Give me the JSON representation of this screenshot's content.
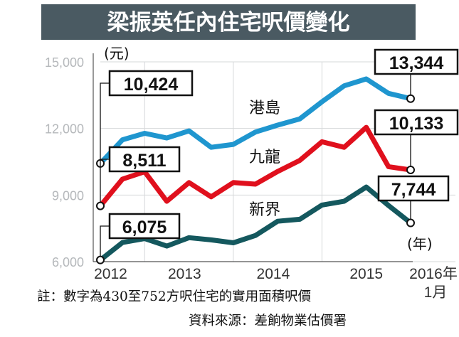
{
  "title": "梁振英任內住宅呎價變化",
  "footnote": "註：數字為430至752方呎住宅的實用面積呎價",
  "source": "資料來源：差餉物業估價署",
  "colors": {
    "title_bg": "#4a5a62",
    "hk_island": "#1f96cf",
    "kowloon": "#e0101d",
    "nt": "#14585e"
  },
  "chart_data": {
    "type": "line",
    "title": "梁振英任內住宅呎價變化",
    "ylabel": "(元)",
    "xlabel": "(年)",
    "ylim": [
      6000,
      15000
    ],
    "yticks": [
      6000,
      9000,
      12000,
      15000
    ],
    "ytick_labels": [
      "6,000",
      "9,000",
      "12,000",
      "15,000"
    ],
    "x_tick_labels": [
      "2012",
      "2013",
      "2014",
      "2015",
      "2016年\n1月"
    ],
    "x_tick_values": [
      2012.5,
      2013.5,
      2014.5,
      2015.5,
      2016.0
    ],
    "xlim": [
      2012.5,
      2016.0
    ],
    "grid": true,
    "series": [
      {
        "name": "港島",
        "color": "#1f96cf",
        "x": [
          2012.5,
          2012.75,
          2013.0,
          2013.25,
          2013.5,
          2013.75,
          2014.0,
          2014.25,
          2014.5,
          2014.75,
          2015.0,
          2015.25,
          2015.5,
          2015.75,
          2016.0
        ],
        "values": [
          10424,
          11490,
          11780,
          11570,
          11890,
          11150,
          11280,
          11840,
          12150,
          12430,
          13200,
          13920,
          14230,
          13580,
          13344
        ],
        "start_label": "10,424",
        "end_label": "13,344"
      },
      {
        "name": "九龍",
        "color": "#e0101d",
        "x": [
          2012.5,
          2012.75,
          2013.0,
          2013.25,
          2013.5,
          2013.75,
          2014.0,
          2014.25,
          2014.5,
          2014.75,
          2015.0,
          2015.25,
          2015.5,
          2015.75,
          2016.0
        ],
        "values": [
          8511,
          9720,
          10050,
          8720,
          9560,
          8920,
          9560,
          9490,
          10060,
          10560,
          11400,
          11150,
          12050,
          10280,
          10133
        ],
        "start_label": "8,511",
        "end_label": "10,133"
      },
      {
        "name": "新界",
        "color": "#14585e",
        "x": [
          2012.5,
          2012.75,
          2013.0,
          2013.25,
          2013.5,
          2013.75,
          2014.0,
          2014.25,
          2014.5,
          2014.75,
          2015.0,
          2015.25,
          2015.5,
          2015.75,
          2016.0
        ],
        "values": [
          6075,
          6860,
          7040,
          6700,
          7080,
          6980,
          6850,
          7180,
          7820,
          7910,
          8550,
          8720,
          9360,
          8530,
          7744
        ],
        "start_label": "6,075",
        "end_label": "7,744"
      }
    ]
  }
}
